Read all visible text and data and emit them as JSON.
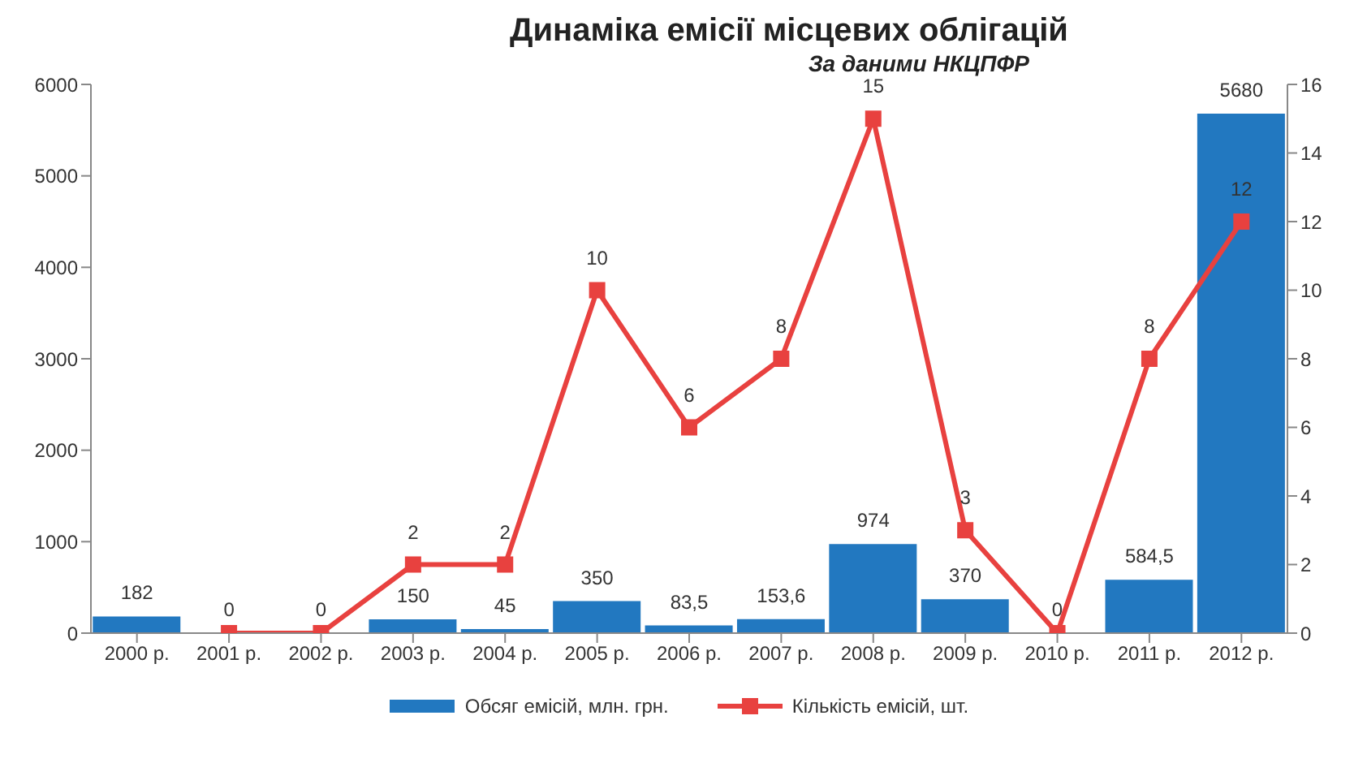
{
  "chart_data": {
    "type": "bar",
    "title": "Динаміка емісії місцевих облігацій",
    "subtitle": "За даними НКЦПФР",
    "categories": [
      "2000 р.",
      "2001 р.",
      "2002 р.",
      "2003 р.",
      "2004 р.",
      "2005 р.",
      "2006 р.",
      "2007 р.",
      "2008 р.",
      "2009 р.",
      "2010 р.",
      "2011 р.",
      "2012 р."
    ],
    "series": [
      {
        "name": "Обсяг емісій, млн. грн.",
        "color": "#2278c0",
        "values": [
          182,
          0,
          0,
          150,
          45,
          350,
          83.5,
          153.6,
          974,
          370,
          0,
          584.5,
          5680
        ],
        "value_labels": [
          "182",
          "0",
          "0",
          "150",
          "45",
          "350",
          "83,5",
          "153,6",
          "974",
          "370",
          "0",
          "584,5",
          "5680"
        ]
      },
      {
        "name": "Кількість емісій, шт.",
        "type": "line",
        "axis": "y2",
        "color": "#e8413f",
        "marker": "square",
        "values": [
          null,
          0,
          0,
          2,
          2,
          10,
          6,
          8,
          15,
          3,
          0,
          8,
          12
        ],
        "value_labels": [
          null,
          null,
          null,
          "2",
          "2",
          "10",
          "6",
          "8",
          "15",
          "3",
          null,
          "8",
          "12"
        ]
      }
    ],
    "ylim": [
      0,
      6000
    ],
    "yticks": [
      0,
      1000,
      2000,
      3000,
      4000,
      5000,
      6000
    ],
    "y2lim": [
      0,
      16
    ],
    "y2ticks": [
      0,
      2,
      4,
      6,
      8,
      10,
      12,
      14,
      16
    ],
    "grid": false,
    "legend": "bottom"
  }
}
